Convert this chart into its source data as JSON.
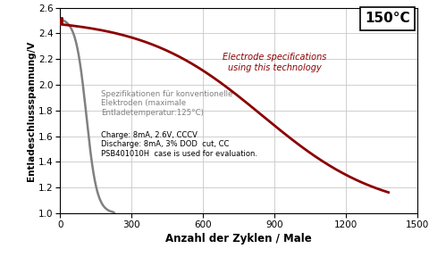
{
  "title": "150°C",
  "xlabel": "Anzahl der Zyklen / Male",
  "ylabel": "Entladeschlussspannung/V",
  "xlim": [
    0,
    1500
  ],
  "ylim": [
    1.0,
    2.6
  ],
  "xticks": [
    0,
    300,
    600,
    900,
    1200,
    1500
  ],
  "yticks": [
    1.0,
    1.2,
    1.4,
    1.6,
    1.8,
    2.0,
    2.2,
    2.4,
    2.6
  ],
  "red_curve_color": "#8B0000",
  "gray_curve_color": "#808080",
  "annotation_red_line1": "Electrode specifications",
  "annotation_red_line2": "using this technology",
  "annotation_gray_line1": "Spezifikationen für konventionelle",
  "annotation_gray_line2": "Elektroden (maximale",
  "annotation_gray_line3": "Entladetemperatur:125°C)",
  "annotation_black_line1": "Charge: 8mA, 2.6V, CCCV",
  "annotation_black_line2": "Discharge: 8mA, 3% DOD  cut, CC",
  "annotation_black_line3": "PSB401010H  case is used for evaluation.",
  "background_color": "#ffffff",
  "grid_color": "#c8c8c8"
}
